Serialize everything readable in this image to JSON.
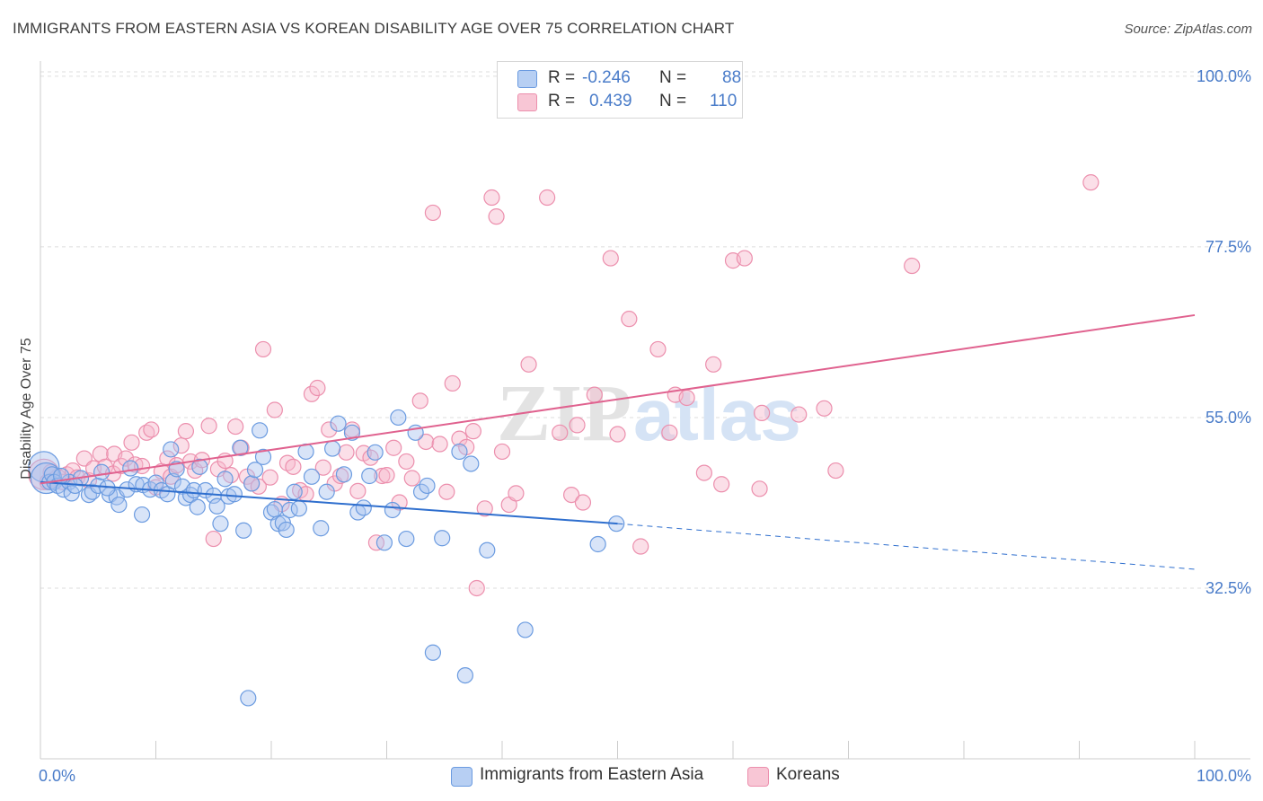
{
  "title": "IMMIGRANTS FROM EASTERN ASIA VS KOREAN DISABILITY AGE OVER 75 CORRELATION CHART",
  "source": "Source: ZipAtlas.com",
  "watermark": {
    "zip": "ZIP",
    "atlas": "atlas"
  },
  "legend": {
    "rows": [
      {
        "r_label": "R =",
        "r_value": "-0.246",
        "n_label": "N =",
        "n_value": "88"
      },
      {
        "r_label": "R =",
        "r_value": "0.439",
        "n_label": "N =",
        "n_value": "110"
      }
    ]
  },
  "colors": {
    "blue_fill": "#a9c4ef",
    "blue_stroke": "#6b9be0",
    "blue_line": "#2f6fce",
    "pink_fill": "#f6b8cb",
    "pink_stroke": "#ec8fad",
    "pink_line": "#e0628f",
    "tick": "#4a7cc9",
    "grid": "#dddddd"
  },
  "chart_data": {
    "type": "scatter",
    "title": "IMMIGRANTS FROM EASTERN ASIA VS KOREAN DISABILITY AGE OVER 75 CORRELATION CHART",
    "xlabel": "",
    "ylabel": "Disability Age Over 75",
    "xlim": [
      0,
      100
    ],
    "ylim": [
      10,
      102
    ],
    "x_tick_labels": [
      "0.0%",
      "100.0%"
    ],
    "y_ticks": [
      {
        "value": 100.0,
        "label": "100.0%"
      },
      {
        "value": 77.5,
        "label": "77.5%"
      },
      {
        "value": 55.0,
        "label": "55.0%"
      },
      {
        "value": 32.5,
        "label": "32.5%"
      }
    ],
    "grid": true,
    "legend_position": "top-center",
    "series": [
      {
        "name": "Immigrants from Eastern Asia",
        "color": "#6b9be0",
        "r": -0.246,
        "n": 88,
        "trend": {
          "x0": 0,
          "y0": 46.5,
          "x1": 50,
          "y1": 41.0,
          "x_dashed_end": 100,
          "y_dashed_end": 35.0
        },
        "points": [
          [
            0.3,
            48.5,
            1
          ],
          [
            0.5,
            47,
            1
          ],
          [
            0.8,
            46.5,
            0
          ],
          [
            1.0,
            47.5,
            0
          ],
          [
            1.2,
            46.5,
            0
          ],
          [
            1.5,
            46,
            0
          ],
          [
            2.0,
            45.5,
            0
          ],
          [
            2.5,
            46.5,
            0
          ],
          [
            2.7,
            45,
            0
          ],
          [
            3.5,
            47,
            0
          ],
          [
            4.2,
            44.8,
            0
          ],
          [
            4.5,
            45.2,
            0
          ],
          [
            5.0,
            46,
            0
          ],
          [
            5.3,
            47.8,
            0
          ],
          [
            6.0,
            44.8,
            0
          ],
          [
            6.6,
            44.5,
            0
          ],
          [
            6.8,
            43.5,
            0
          ],
          [
            7.5,
            45.5,
            0
          ],
          [
            7.8,
            48.3,
            0
          ],
          [
            8.3,
            46.2,
            0
          ],
          [
            8.8,
            42.2,
            0
          ],
          [
            8.9,
            46.1,
            0
          ],
          [
            9.5,
            45.5,
            0
          ],
          [
            10.0,
            46.4,
            0
          ],
          [
            10.5,
            45.4,
            0
          ],
          [
            11.0,
            44.9,
            0
          ],
          [
            11.3,
            50.8,
            0
          ],
          [
            11.5,
            46.6,
            0
          ],
          [
            11.8,
            48.2,
            0
          ],
          [
            12.3,
            45.9,
            0
          ],
          [
            12.6,
            44.4,
            0
          ],
          [
            13.0,
            44.8,
            0
          ],
          [
            13.3,
            45.4,
            0
          ],
          [
            13.6,
            43.2,
            0
          ],
          [
            13.8,
            48.5,
            0
          ],
          [
            14.3,
            45.4,
            0
          ],
          [
            15.0,
            44.7,
            0
          ],
          [
            15.3,
            43.3,
            0
          ],
          [
            15.6,
            41.0,
            0
          ],
          [
            16.0,
            46.9,
            0
          ],
          [
            16.3,
            44.6,
            0
          ],
          [
            16.8,
            44.9,
            0
          ],
          [
            17.3,
            51.0,
            0
          ],
          [
            17.6,
            40.1,
            0
          ],
          [
            18.3,
            46.3,
            0
          ],
          [
            18.6,
            48.1,
            0
          ],
          [
            19.0,
            53.3,
            0
          ],
          [
            19.3,
            49.8,
            0
          ],
          [
            20.0,
            42.5,
            0
          ],
          [
            20.3,
            42.9,
            0
          ],
          [
            20.6,
            41.0,
            0
          ],
          [
            21.0,
            41.1,
            0
          ],
          [
            21.3,
            40.2,
            0
          ],
          [
            21.6,
            42.8,
            0
          ],
          [
            22.0,
            45.2,
            0
          ],
          [
            22.4,
            43.0,
            0
          ],
          [
            23.0,
            50.5,
            0
          ],
          [
            23.5,
            47.2,
            0
          ],
          [
            24.3,
            40.4,
            0
          ],
          [
            24.8,
            45.2,
            0
          ],
          [
            25.3,
            50.9,
            0
          ],
          [
            25.8,
            54.2,
            0
          ],
          [
            26.3,
            47.5,
            0
          ],
          [
            27.0,
            53.0,
            0
          ],
          [
            27.5,
            42.5,
            0
          ],
          [
            28.0,
            43.1,
            0
          ],
          [
            28.5,
            47.3,
            0
          ],
          [
            29.0,
            50.4,
            0
          ],
          [
            29.8,
            38.5,
            0
          ],
          [
            30.5,
            42.8,
            0
          ],
          [
            31.0,
            55.0,
            0
          ],
          [
            31.7,
            39.0,
            0
          ],
          [
            32.5,
            53.0,
            0
          ],
          [
            33.0,
            45.2,
            0
          ],
          [
            33.5,
            46.0,
            0
          ],
          [
            34.0,
            24.0,
            0
          ],
          [
            34.8,
            39.1,
            0
          ],
          [
            36.3,
            50.5,
            0
          ],
          [
            36.8,
            21.0,
            0
          ],
          [
            37.3,
            48.9,
            0
          ],
          [
            38.7,
            37.5,
            0
          ],
          [
            42.0,
            27.0,
            0
          ],
          [
            48.3,
            38.3,
            0
          ],
          [
            49.9,
            41.0,
            0
          ],
          [
            18.0,
            18.0,
            0
          ],
          [
            1.8,
            47.3,
            0
          ],
          [
            3.0,
            46.0,
            0
          ],
          [
            5.8,
            45.7,
            0
          ]
        ]
      },
      {
        "name": "Koreans",
        "color": "#ec8fad",
        "r": 0.439,
        "n": 110,
        "trend": {
          "x0": 0,
          "y0": 46.3,
          "x1": 100,
          "y1": 68.5
        },
        "points": [
          [
            0.3,
            47.5,
            1
          ],
          [
            0.6,
            46.5,
            0
          ],
          [
            0.9,
            47.8,
            0
          ],
          [
            1.2,
            46.8,
            0
          ],
          [
            1.5,
            47.2,
            0
          ],
          [
            1.9,
            46.5,
            0
          ],
          [
            2.3,
            47.5,
            0
          ],
          [
            2.8,
            48.0,
            0
          ],
          [
            3.2,
            47.1,
            0
          ],
          [
            3.8,
            49.6,
            0
          ],
          [
            4.2,
            46.7,
            0
          ],
          [
            4.6,
            48.3,
            0
          ],
          [
            5.2,
            50.2,
            0
          ],
          [
            5.6,
            48.5,
            0
          ],
          [
            6.3,
            47.6,
            0
          ],
          [
            6.4,
            50.2,
            0
          ],
          [
            7.0,
            48.6,
            0
          ],
          [
            7.4,
            49.6,
            0
          ],
          [
            7.9,
            51.7,
            0
          ],
          [
            8.2,
            48.8,
            0
          ],
          [
            8.8,
            48.6,
            0
          ],
          [
            9.2,
            53.0,
            0
          ],
          [
            9.6,
            53.4,
            0
          ],
          [
            10.0,
            45.8,
            0
          ],
          [
            10.5,
            47.9,
            0
          ],
          [
            11.0,
            49.6,
            0
          ],
          [
            11.3,
            47.2,
            0
          ],
          [
            11.8,
            48.7,
            0
          ],
          [
            12.2,
            51.3,
            0
          ],
          [
            12.6,
            53.2,
            0
          ],
          [
            13.0,
            49.2,
            0
          ],
          [
            13.4,
            48.0,
            0
          ],
          [
            14.0,
            49.4,
            0
          ],
          [
            14.6,
            53.9,
            0
          ],
          [
            15.0,
            39.0,
            0
          ],
          [
            15.4,
            48.2,
            0
          ],
          [
            16.0,
            49.3,
            0
          ],
          [
            16.5,
            47.4,
            0
          ],
          [
            16.9,
            53.8,
            0
          ],
          [
            17.4,
            51.0,
            0
          ],
          [
            17.9,
            47.2,
            0
          ],
          [
            18.3,
            46.3,
            0
          ],
          [
            18.9,
            45.9,
            0
          ],
          [
            19.3,
            64.0,
            0
          ],
          [
            19.9,
            47.1,
            0
          ],
          [
            20.3,
            56.0,
            0
          ],
          [
            20.9,
            43.6,
            0
          ],
          [
            21.4,
            49.0,
            0
          ],
          [
            21.9,
            48.5,
            0
          ],
          [
            22.5,
            45.4,
            0
          ],
          [
            23.0,
            44.9,
            0
          ],
          [
            23.5,
            58.1,
            0
          ],
          [
            24.0,
            58.9,
            0
          ],
          [
            24.5,
            48.4,
            0
          ],
          [
            25.0,
            53.4,
            0
          ],
          [
            25.5,
            46.3,
            0
          ],
          [
            26.0,
            47.3,
            0
          ],
          [
            26.5,
            50.4,
            0
          ],
          [
            27.0,
            53.4,
            0
          ],
          [
            27.5,
            45.3,
            0
          ],
          [
            28.0,
            50.3,
            0
          ],
          [
            28.6,
            49.7,
            0
          ],
          [
            29.1,
            38.5,
            0
          ],
          [
            29.6,
            47.3,
            0
          ],
          [
            30.0,
            47.4,
            0
          ],
          [
            30.6,
            51.0,
            0
          ],
          [
            31.1,
            43.8,
            0
          ],
          [
            31.7,
            49.2,
            0
          ],
          [
            32.2,
            47.0,
            0
          ],
          [
            32.9,
            57.2,
            0
          ],
          [
            33.4,
            51.8,
            0
          ],
          [
            34.0,
            82.0,
            0
          ],
          [
            34.6,
            51.5,
            0
          ],
          [
            35.2,
            45.2,
            0
          ],
          [
            35.7,
            59.5,
            0
          ],
          [
            36.3,
            52.2,
            0
          ],
          [
            36.9,
            51.1,
            0
          ],
          [
            37.5,
            53.2,
            0
          ],
          [
            37.8,
            32.5,
            0
          ],
          [
            38.5,
            43.0,
            0
          ],
          [
            39.1,
            84.0,
            0
          ],
          [
            39.5,
            81.5,
            0
          ],
          [
            40.0,
            50.5,
            0
          ],
          [
            40.6,
            43.5,
            0
          ],
          [
            41.2,
            45.0,
            0
          ],
          [
            42.3,
            62.0,
            0
          ],
          [
            43.9,
            84.0,
            0
          ],
          [
            45.0,
            53.0,
            0
          ],
          [
            46.0,
            44.8,
            0
          ],
          [
            46.5,
            54.0,
            0
          ],
          [
            47.0,
            43.8,
            0
          ],
          [
            48.0,
            58.0,
            0
          ],
          [
            49.4,
            76.0,
            0
          ],
          [
            50.0,
            52.8,
            0
          ],
          [
            51.0,
            68.0,
            0
          ],
          [
            52.0,
            38.0,
            0
          ],
          [
            53.5,
            64.0,
            0
          ],
          [
            54.5,
            53.0,
            0
          ],
          [
            55.0,
            58.0,
            0
          ],
          [
            56.0,
            57.6,
            0
          ],
          [
            57.5,
            47.7,
            0
          ],
          [
            58.3,
            62.0,
            0
          ],
          [
            59.0,
            46.2,
            0
          ],
          [
            60.0,
            75.7,
            0
          ],
          [
            61.0,
            76.0,
            0
          ],
          [
            62.3,
            45.6,
            0
          ],
          [
            62.5,
            55.6,
            0
          ],
          [
            65.7,
            55.4,
            0
          ],
          [
            67.9,
            56.2,
            0
          ],
          [
            68.9,
            48.0,
            0
          ],
          [
            75.5,
            75.0,
            0
          ],
          [
            91.0,
            86.0,
            0
          ]
        ]
      }
    ]
  },
  "bottom_legend": [
    {
      "label": "Immigrants from Eastern Asia"
    },
    {
      "label": "Koreans"
    }
  ]
}
